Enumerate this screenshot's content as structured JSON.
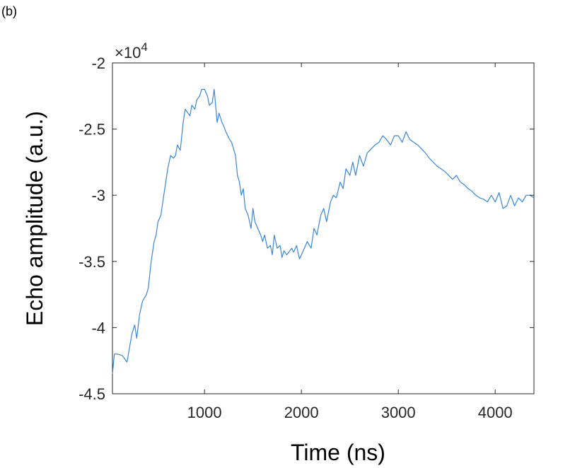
{
  "panel_label": "(b)",
  "chart_data": {
    "type": "line",
    "title": "",
    "xlabel": "Time (ns)",
    "ylabel": "Echo amplitude (a.u.)",
    "exponent_label": "×10",
    "exponent_power": "4",
    "xlim": [
      50,
      4400
    ],
    "ylim": [
      -4.5,
      -2
    ],
    "xticks": [
      1000,
      2000,
      3000,
      4000
    ],
    "xtick_labels": [
      "1000",
      "2000",
      "3000",
      "4000"
    ],
    "yticks": [
      -4.5,
      -4,
      -3.5,
      -3,
      -2.5,
      -2
    ],
    "ytick_labels": [
      "-4.5",
      "-4",
      "-3.5",
      "-3",
      "-2.5",
      "-2"
    ],
    "grid": false,
    "line_color": "#3a86d8",
    "series": [
      {
        "x": [
          50,
          70,
          100,
          150,
          200,
          250,
          280,
          300,
          330,
          360,
          400,
          420,
          450,
          480,
          500,
          520,
          550,
          570,
          600,
          620,
          650,
          680,
          700,
          720,
          750,
          780,
          800,
          820,
          850,
          870,
          900,
          920,
          950,
          970,
          1000,
          1030,
          1050,
          1080,
          1100,
          1130,
          1150,
          1180,
          1200,
          1220,
          1240,
          1260,
          1280,
          1300,
          1320,
          1340,
          1360,
          1380,
          1400,
          1420,
          1450,
          1480,
          1500,
          1520,
          1550,
          1580,
          1600,
          1620,
          1650,
          1680,
          1700,
          1720,
          1750,
          1780,
          1800,
          1820,
          1850,
          1880,
          1900,
          1920,
          1950,
          1980,
          2000,
          2030,
          2060,
          2100,
          2130,
          2160,
          2200,
          2230,
          2260,
          2300,
          2330,
          2360,
          2400,
          2430,
          2460,
          2500,
          2530,
          2560,
          2600,
          2640,
          2680,
          2720,
          2760,
          2800,
          2840,
          2880,
          2920,
          2960,
          3000,
          3040,
          3080,
          3120,
          3160,
          3200,
          3240,
          3280,
          3320,
          3360,
          3400,
          3440,
          3480,
          3520,
          3560,
          3600,
          3640,
          3680,
          3720,
          3760,
          3800,
          3840,
          3880,
          3920,
          3960,
          4000,
          4040,
          4080,
          4120,
          4160,
          4200,
          4240,
          4280,
          4320,
          4360,
          4400
        ],
        "values": [
          -4.35,
          -4.2,
          -4.2,
          -4.21,
          -4.26,
          -4.05,
          -3.98,
          -4.08,
          -3.9,
          -3.8,
          -3.75,
          -3.7,
          -3.5,
          -3.35,
          -3.3,
          -3.2,
          -3.15,
          -3.05,
          -2.9,
          -2.8,
          -2.7,
          -2.72,
          -2.7,
          -2.62,
          -2.66,
          -2.45,
          -2.35,
          -2.37,
          -2.4,
          -2.32,
          -2.35,
          -2.28,
          -2.25,
          -2.2,
          -2.2,
          -2.25,
          -2.32,
          -2.3,
          -2.2,
          -2.45,
          -2.38,
          -2.45,
          -2.48,
          -2.52,
          -2.55,
          -2.58,
          -2.6,
          -2.65,
          -2.7,
          -2.85,
          -2.9,
          -3.0,
          -2.95,
          -3.1,
          -3.15,
          -3.25,
          -3.1,
          -3.2,
          -3.25,
          -3.3,
          -3.35,
          -3.3,
          -3.4,
          -3.38,
          -3.45,
          -3.3,
          -3.4,
          -3.38,
          -3.47,
          -3.42,
          -3.45,
          -3.42,
          -3.4,
          -3.43,
          -3.38,
          -3.48,
          -3.45,
          -3.4,
          -3.35,
          -3.4,
          -3.25,
          -3.3,
          -3.15,
          -3.1,
          -3.2,
          -3.05,
          -3.0,
          -3.02,
          -2.9,
          -2.95,
          -2.8,
          -2.85,
          -2.75,
          -2.85,
          -2.7,
          -2.78,
          -2.68,
          -2.65,
          -2.62,
          -2.6,
          -2.55,
          -2.58,
          -2.62,
          -2.55,
          -2.55,
          -2.6,
          -2.52,
          -2.58,
          -2.6,
          -2.62,
          -2.65,
          -2.68,
          -2.72,
          -2.75,
          -2.78,
          -2.8,
          -2.82,
          -2.85,
          -2.88,
          -2.85,
          -2.9,
          -2.92,
          -2.95,
          -2.97,
          -3.0,
          -3.02,
          -3.03,
          -3.05,
          -3.0,
          -3.05,
          -2.98,
          -3.1,
          -3.08,
          -3.0,
          -3.08,
          -3.02,
          -3.05,
          -3.0,
          -3.0,
          -3.02
        ]
      }
    ]
  }
}
